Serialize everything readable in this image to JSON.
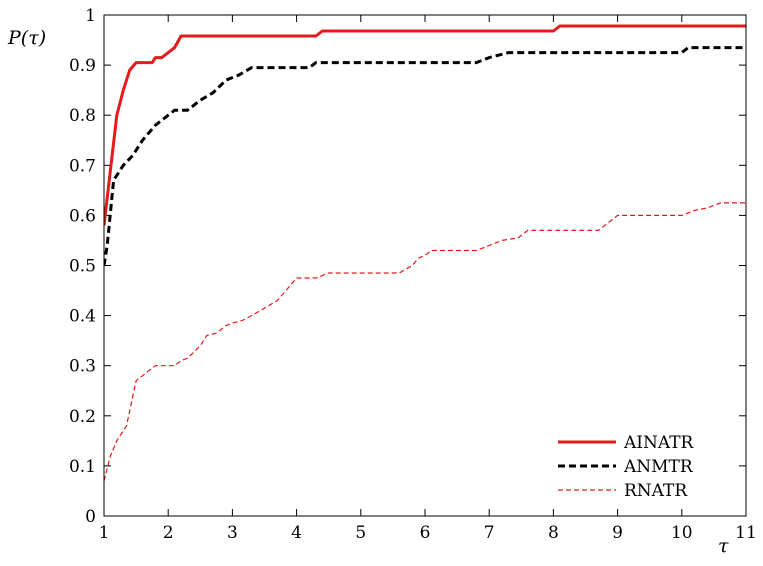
{
  "chart_data": {
    "type": "line",
    "title": "",
    "xlabel": "τ",
    "ylabel": "P(τ)",
    "xlim": [
      1,
      11
    ],
    "ylim": [
      0,
      1
    ],
    "x_ticks": [
      "1",
      "2",
      "3",
      "4",
      "5",
      "6",
      "7",
      "8",
      "9",
      "10",
      "11"
    ],
    "y_ticks": [
      "0",
      "0.1",
      "0.2",
      "0.3",
      "0.4",
      "0.5",
      "0.6",
      "0.7",
      "0.8",
      "0.9",
      "1"
    ],
    "grid": false,
    "legend_position": "bottom-right",
    "series": [
      {
        "name": "AINATR",
        "color": "#e41a1c",
        "style": "solid-thick",
        "points": [
          [
            1.0,
            0.58
          ],
          [
            1.2,
            0.8
          ],
          [
            1.3,
            0.85
          ],
          [
            1.4,
            0.89
          ],
          [
            1.5,
            0.905
          ],
          [
            1.75,
            0.905
          ],
          [
            1.8,
            0.915
          ],
          [
            1.9,
            0.915
          ],
          [
            2.1,
            0.935
          ],
          [
            2.2,
            0.958
          ],
          [
            4.3,
            0.958
          ],
          [
            4.4,
            0.968
          ],
          [
            8.0,
            0.968
          ],
          [
            8.1,
            0.978
          ],
          [
            11.0,
            0.978
          ]
        ]
      },
      {
        "name": "ANMTR",
        "color": "#000000",
        "style": "dashed-thick",
        "points": [
          [
            1.0,
            0.5
          ],
          [
            1.05,
            0.54
          ],
          [
            1.15,
            0.67
          ],
          [
            1.3,
            0.7
          ],
          [
            1.45,
            0.72
          ],
          [
            1.6,
            0.75
          ],
          [
            1.8,
            0.78
          ],
          [
            2.0,
            0.8
          ],
          [
            2.1,
            0.81
          ],
          [
            2.3,
            0.81
          ],
          [
            2.5,
            0.83
          ],
          [
            2.7,
            0.845
          ],
          [
            2.9,
            0.87
          ],
          [
            3.1,
            0.88
          ],
          [
            3.3,
            0.895
          ],
          [
            4.2,
            0.895
          ],
          [
            4.3,
            0.905
          ],
          [
            6.8,
            0.905
          ],
          [
            7.0,
            0.915
          ],
          [
            7.3,
            0.925
          ],
          [
            10.0,
            0.925
          ],
          [
            10.1,
            0.935
          ],
          [
            11.0,
            0.935
          ]
        ]
      },
      {
        "name": "RNATR",
        "color": "#e41a1c",
        "style": "dashed-thin",
        "points": [
          [
            1.0,
            0.07
          ],
          [
            1.1,
            0.12
          ],
          [
            1.2,
            0.15
          ],
          [
            1.35,
            0.18
          ],
          [
            1.45,
            0.24
          ],
          [
            1.5,
            0.27
          ],
          [
            1.6,
            0.28
          ],
          [
            1.8,
            0.3
          ],
          [
            2.1,
            0.3
          ],
          [
            2.2,
            0.31
          ],
          [
            2.3,
            0.315
          ],
          [
            2.5,
            0.34
          ],
          [
            2.6,
            0.36
          ],
          [
            2.75,
            0.365
          ],
          [
            2.9,
            0.38
          ],
          [
            3.0,
            0.385
          ],
          [
            3.15,
            0.39
          ],
          [
            3.3,
            0.4
          ],
          [
            3.5,
            0.415
          ],
          [
            3.7,
            0.43
          ],
          [
            3.9,
            0.46
          ],
          [
            4.0,
            0.475
          ],
          [
            4.3,
            0.475
          ],
          [
            4.5,
            0.485
          ],
          [
            5.6,
            0.485
          ],
          [
            5.8,
            0.5
          ],
          [
            5.9,
            0.515
          ],
          [
            6.0,
            0.52
          ],
          [
            6.1,
            0.53
          ],
          [
            6.8,
            0.53
          ],
          [
            7.0,
            0.54
          ],
          [
            7.2,
            0.55
          ],
          [
            7.45,
            0.555
          ],
          [
            7.6,
            0.57
          ],
          [
            8.7,
            0.57
          ],
          [
            8.9,
            0.59
          ],
          [
            9.0,
            0.6
          ],
          [
            10.0,
            0.6
          ],
          [
            10.2,
            0.61
          ],
          [
            10.4,
            0.615
          ],
          [
            10.6,
            0.625
          ],
          [
            11.0,
            0.625
          ]
        ]
      }
    ]
  }
}
